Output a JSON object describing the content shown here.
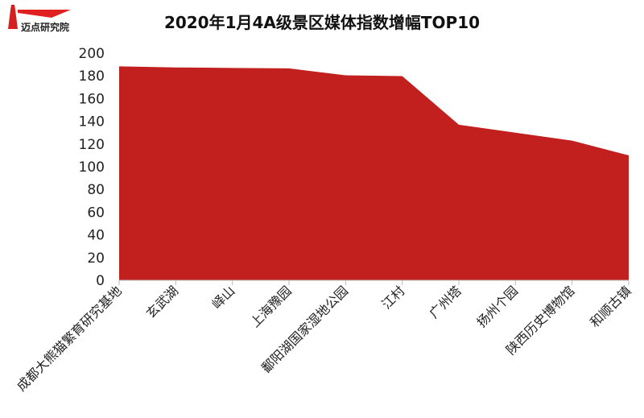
{
  "logo": {
    "text": "迈点研究院",
    "color": "#d42020"
  },
  "chart_data": {
    "type": "area",
    "title": "2020年1月4A级景区媒体指数增幅TOP10",
    "categories": [
      "成都大熊猫繁育研究基地",
      "玄武湖",
      "峄山",
      "上海豫园",
      "鄱阳湖国家湿地公园",
      "江村",
      "广州塔",
      "扬州个园",
      "陕西历史博物馆",
      "和顺古镇"
    ],
    "values": [
      188.4,
      187.4,
      187,
      186.6,
      180.5,
      179.8,
      137,
      130,
      123,
      110
    ],
    "ylim": [
      0,
      200
    ],
    "yticks": [
      0,
      20,
      40,
      60,
      80,
      100,
      120,
      140,
      160,
      180,
      200
    ],
    "xlabel": "",
    "ylabel": "",
    "grid": false,
    "color": "#c21f1f"
  }
}
